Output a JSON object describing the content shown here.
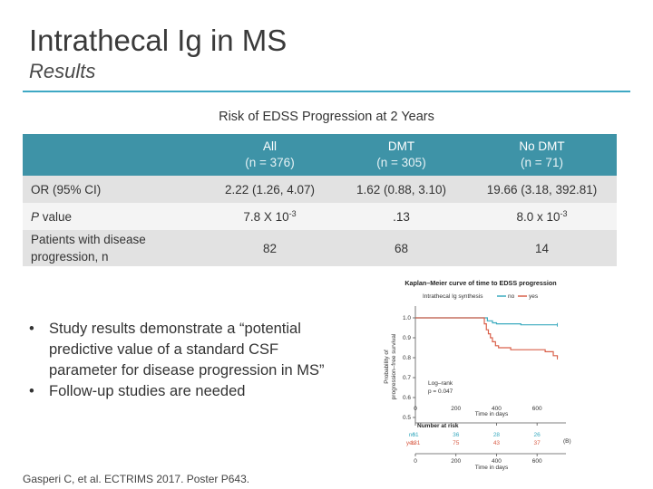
{
  "slide": {
    "title": "Intrathecal Ig in MS",
    "subtitle": "Results"
  },
  "table": {
    "caption": "Risk of EDSS Progression at 2 Years",
    "columns": [
      {
        "name": "All",
        "n": "(n = 376)"
      },
      {
        "name": "DMT",
        "n": "(n = 305)"
      },
      {
        "name": "No DMT",
        "n": "(n = 71)"
      }
    ],
    "rows": [
      {
        "label": "OR (95% CI)",
        "values": [
          "2.22 (1.26, 4.07)",
          "1.62 (0.88, 3.10)",
          "19.66 (3.18, 392.81)"
        ]
      },
      {
        "label_italic": "P",
        "label_rest": " value",
        "values_base": [
          "7.8 X 10",
          ".13",
          "8.0 x 10"
        ],
        "values_exp": [
          "-3",
          "",
          "-3"
        ]
      },
      {
        "label_line1": "Patients with disease",
        "label_line2": "progression, n",
        "values": [
          "82",
          "68",
          "14"
        ]
      }
    ]
  },
  "bullets": [
    {
      "lines": [
        "Study results demonstrate a “potential",
        "predictive value of a standard CSF",
        "parameter for disease progression in MS”"
      ]
    },
    {
      "lines": [
        "Follow-up studies are needed"
      ]
    }
  ],
  "bullet_symbol": "•",
  "citation": "Gasperi C, et al. ECTRIMS 2017. Poster P643.",
  "km_chart": {
    "title": "Kaplan–Meier curve of time to EDSS progression",
    "legend_title": "Intrathecal Ig synthesis",
    "legend_items": [
      {
        "label": "no",
        "color": "#3aaabf"
      },
      {
        "label": "yes",
        "color": "#d9604a"
      }
    ],
    "legend_sep": "–",
    "ylabel_line1": "Probability of",
    "ylabel_line2": "progression–free survival",
    "xlabel": "Time in days",
    "risk_xlabel": "Time in days",
    "annotation_line1": "Log–rank",
    "annotation_line2": "p = 0.047",
    "panel_label": "(B)",
    "number_at_risk_title": "Number at risk"
  },
  "chart_data": {
    "type": "line",
    "title": "Kaplan–Meier curve of time to EDSS progression",
    "xlabel": "Time in days",
    "ylabel": "Probability of progression–free survival",
    "xlim": [
      0,
      720
    ],
    "ylim": [
      0.5,
      1.0
    ],
    "xticks": [
      0,
      200,
      400,
      600
    ],
    "yticks": [
      0.5,
      0.6,
      0.7,
      0.8,
      0.9,
      1.0
    ],
    "series": [
      {
        "name": "no",
        "color": "#3aaabf",
        "x": [
          0,
          340,
          355,
          380,
          400,
          430,
          470,
          520,
          570,
          610,
          700
        ],
        "y": [
          1.0,
          1.0,
          0.985,
          0.975,
          0.97,
          0.97,
          0.97,
          0.965,
          0.965,
          0.965,
          0.965
        ]
      },
      {
        "name": "yes",
        "color": "#d9604a",
        "x": [
          0,
          320,
          340,
          350,
          360,
          370,
          380,
          395,
          410,
          440,
          470,
          520,
          580,
          640,
          680,
          700
        ],
        "y": [
          1.0,
          1.0,
          0.97,
          0.94,
          0.92,
          0.9,
          0.88,
          0.86,
          0.85,
          0.85,
          0.84,
          0.84,
          0.84,
          0.83,
          0.81,
          0.8
        ]
      }
    ],
    "annotation": "Log–rank p = 0.047",
    "number_at_risk": {
      "times": [
        0,
        200,
        400,
        600
      ],
      "rows": [
        {
          "label": "no",
          "color": "#3aaabf",
          "values": [
            "61",
            "36",
            "28",
            "26"
          ]
        },
        {
          "label": "yes",
          "color": "#d9604a",
          "values": [
            "131",
            "75",
            "43",
            "37"
          ]
        }
      ]
    }
  }
}
